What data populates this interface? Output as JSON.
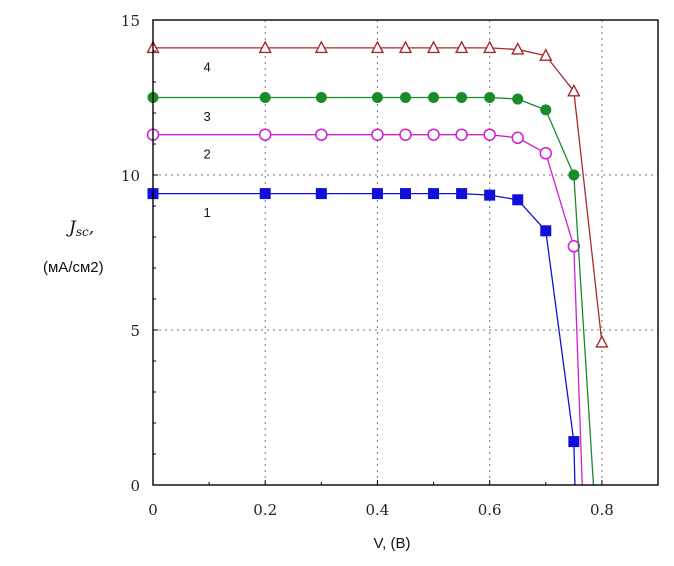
{
  "chart_data": {
    "type": "line",
    "title": "",
    "xlabel": "V, (B)",
    "ylabel_symbol": "Jsc",
    "ylabel_symbol_main": "J",
    "ylabel_symbol_sub": "sc",
    "ylabel_suffix": ",",
    "ylabel_units": "(мА/см2)",
    "xlim": [
      0,
      0.9
    ],
    "ylim": [
      0,
      15
    ],
    "xticks": [
      0,
      0.2,
      0.4,
      0.6,
      0.8
    ],
    "xtick_labels": [
      "0",
      "0.2",
      "0.4",
      "0.6",
      "0.8"
    ],
    "yticks": [
      0,
      5,
      10,
      15
    ],
    "ytick_labels": [
      "0",
      "5",
      "10",
      "15"
    ],
    "grid": true,
    "series": [
      {
        "name": "1",
        "color": "#1010d8",
        "marker": "square-filled",
        "x": [
          0,
          0.2,
          0.3,
          0.4,
          0.45,
          0.5,
          0.55,
          0.6,
          0.65,
          0.7,
          0.75,
          0.752
        ],
        "y": [
          9.4,
          9.4,
          9.4,
          9.4,
          9.4,
          9.4,
          9.4,
          9.35,
          9.2,
          8.2,
          1.4,
          0
        ],
        "markers_n": 11,
        "label_at": [
          0.09,
          8.8
        ]
      },
      {
        "name": "2",
        "color": "#d01fd0",
        "marker": "circle-open",
        "x": [
          0,
          0.2,
          0.3,
          0.4,
          0.45,
          0.5,
          0.55,
          0.6,
          0.65,
          0.7,
          0.75,
          0.765
        ],
        "y": [
          11.3,
          11.3,
          11.3,
          11.3,
          11.3,
          11.3,
          11.3,
          11.3,
          11.2,
          10.7,
          7.7,
          0
        ],
        "markers_n": 11,
        "label_at": [
          0.09,
          10.7
        ]
      },
      {
        "name": "3",
        "color": "#1a8a2a",
        "marker": "circle-filled",
        "x": [
          0,
          0.2,
          0.3,
          0.4,
          0.45,
          0.5,
          0.55,
          0.6,
          0.65,
          0.7,
          0.75,
          0.785
        ],
        "y": [
          12.5,
          12.5,
          12.5,
          12.5,
          12.5,
          12.5,
          12.5,
          12.5,
          12.45,
          12.1,
          10.0,
          0
        ],
        "markers_n": 11,
        "label_at": [
          0.09,
          11.9
        ]
      },
      {
        "name": "4",
        "color": "#a52a2a",
        "marker": "triangle-open",
        "x": [
          0,
          0.2,
          0.3,
          0.4,
          0.45,
          0.5,
          0.55,
          0.6,
          0.65,
          0.7,
          0.75,
          0.8
        ],
        "y": [
          14.1,
          14.1,
          14.1,
          14.1,
          14.1,
          14.1,
          14.1,
          14.1,
          14.05,
          13.85,
          12.7,
          4.6
        ],
        "markers_n": 12,
        "label_at": [
          0.09,
          13.5
        ]
      }
    ]
  }
}
